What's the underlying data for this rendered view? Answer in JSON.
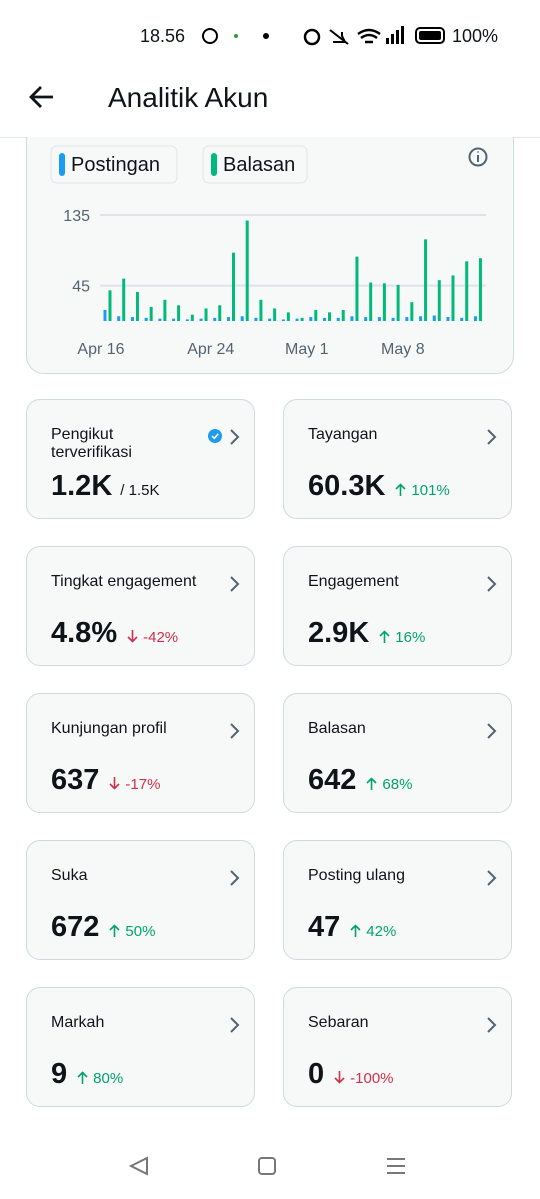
{
  "status_bar": {
    "time": "18.56",
    "battery": "100%"
  },
  "header": {
    "title": "Analitik Akun"
  },
  "chart_data": {
    "type": "bar",
    "categories": [
      "Apr 16",
      null,
      null,
      null,
      null,
      null,
      null,
      null,
      "Apr 24",
      null,
      null,
      null,
      null,
      null,
      null,
      "May 1",
      null,
      null,
      null,
      null,
      null,
      null,
      "May 8",
      null,
      null,
      null,
      null,
      null
    ],
    "series": [
      {
        "name": "Postingan",
        "color": "#1d9bf0",
        "values": [
          14,
          6,
          5,
          4,
          3,
          3,
          2,
          3,
          4,
          5,
          6,
          4,
          3,
          2,
          3,
          5,
          4,
          4,
          6,
          5,
          5,
          4,
          5,
          6,
          7,
          5,
          4,
          6
        ]
      },
      {
        "name": "Balasan",
        "color": "#00ba7c",
        "values": [
          39,
          54,
          37,
          18,
          27,
          20,
          8,
          16,
          20,
          87,
          128,
          27,
          16,
          11,
          4,
          14,
          11,
          14,
          82,
          49,
          48,
          46,
          24,
          104,
          52,
          58,
          76,
          80
        ]
      }
    ],
    "ylim": [
      0,
      135
    ],
    "yticks": [
      45,
      135
    ],
    "grid": true
  },
  "cards": [
    {
      "label": "Pengikut terverifikasi",
      "value": "1.2K",
      "total": "/ 1.5K"
    },
    {
      "label": "Tayangan",
      "value": "60.3K",
      "change": "101%",
      "direction": "up"
    },
    {
      "label": "Tingkat engagement",
      "value": "4.8%",
      "change": "-42%",
      "direction": "down"
    },
    {
      "label": "Engagement",
      "value": "2.9K",
      "change": "16%",
      "direction": "up"
    },
    {
      "label": "Kunjungan profil",
      "value": "637",
      "change": "-17%",
      "direction": "down"
    },
    {
      "label": "Balasan",
      "value": "642",
      "change": "68%",
      "direction": "up"
    },
    {
      "label": "Suka",
      "value": "672",
      "change": "50%",
      "direction": "up"
    },
    {
      "label": "Posting ulang",
      "value": "47",
      "change": "42%",
      "direction": "up"
    },
    {
      "label": "Markah",
      "value": "9",
      "change": "80%",
      "direction": "up"
    },
    {
      "label": "Sebaran",
      "value": "0",
      "change": "-100%",
      "direction": "down"
    }
  ]
}
